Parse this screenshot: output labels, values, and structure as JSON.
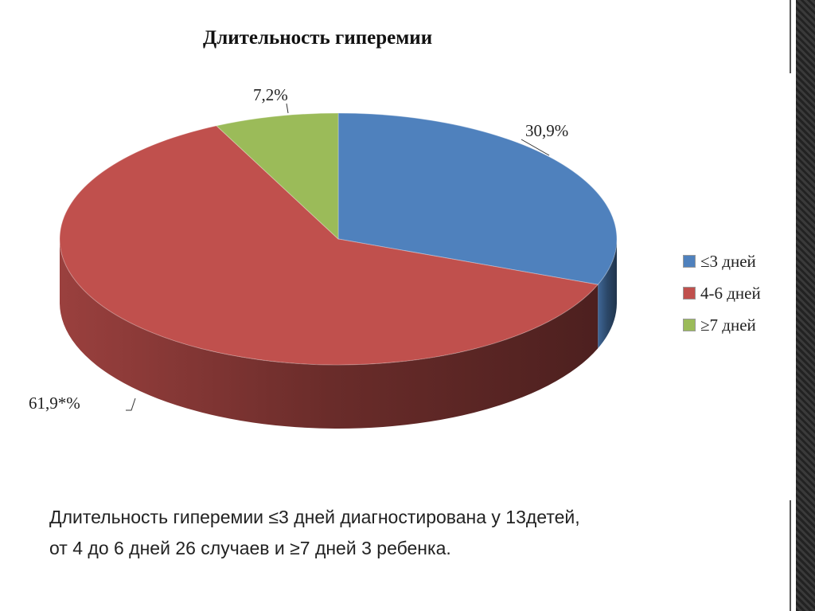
{
  "chart_data": {
    "type": "pie",
    "title": "Длительность гиперемии",
    "categories": [
      "≤3 дней",
      "4-6 дней",
      "≥7 дней"
    ],
    "values": [
      30.9,
      61.9,
      7.2
    ],
    "data_labels": [
      "30,9%",
      "61,9*%",
      "7,2%"
    ],
    "colors": [
      "#4f81bd",
      "#c0504d",
      "#9bbb59"
    ],
    "legend_position": "right"
  },
  "caption": {
    "line1": "Длительность гиперемии ≤3 дней диагностирована у 13детей,",
    "line2": "от 4 до 6 дней 26 случаев и ≥7 дней 3 ребенка."
  }
}
